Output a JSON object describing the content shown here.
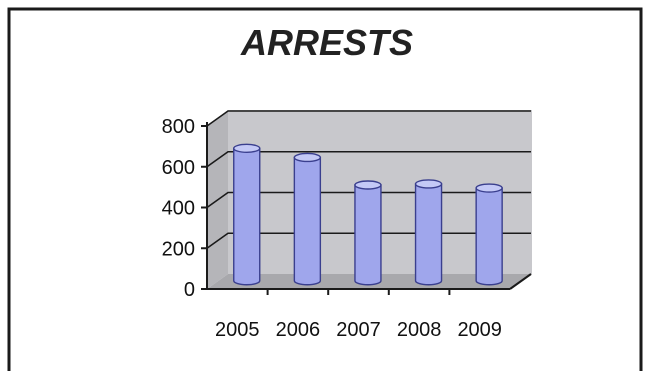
{
  "chart_data": {
    "type": "bar",
    "title": "ARRESTS",
    "categories": [
      "2005",
      "2006",
      "2007",
      "2008",
      "2009"
    ],
    "values": [
      650,
      605,
      470,
      475,
      455
    ],
    "ylim": [
      0,
      800
    ],
    "yticks": [
      0,
      200,
      400,
      600,
      800
    ],
    "grid": true,
    "legend": "none",
    "colors": {
      "bar_fill": "#9fa6ec",
      "bar_top": "#c4c9f6",
      "bar_stroke": "#3a3f8e",
      "wall": "#c8c8cc",
      "floor": "#a8a8ac",
      "frame": "#1a1a1a"
    }
  }
}
